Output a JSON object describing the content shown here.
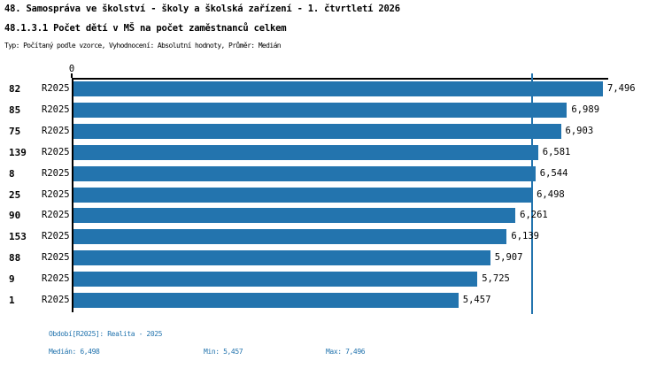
{
  "colors": {
    "accent": "#2374ae",
    "axis": "#000000",
    "title": "#000000"
  },
  "header": {
    "title_line1": "48. Samospráva ve školství - školy a školská zařízení - 1. čtvrtletí 2026",
    "title_line2": "48.1.3.1 Počet dětí v MŠ na počet zaměstnanců celkem",
    "subtitle": "Typ: Počítaný podle vzorce, Vyhodnocení: Absolutní hodnoty, Průměr: Medián"
  },
  "chart_data": {
    "type": "bar",
    "orientation": "horizontal",
    "xlim": [
      0,
      7496
    ],
    "x_tick_labels": [
      "0"
    ],
    "grid": false,
    "median_value": 6498,
    "series_name": "R2025",
    "rows": [
      {
        "id": "82",
        "period": "R2025",
        "value": 7496,
        "label": "7,496"
      },
      {
        "id": "85",
        "period": "R2025",
        "value": 6989,
        "label": "6,989"
      },
      {
        "id": "75",
        "period": "R2025",
        "value": 6903,
        "label": "6,903"
      },
      {
        "id": "139",
        "period": "R2025",
        "value": 6581,
        "label": "6,581"
      },
      {
        "id": "8",
        "period": "R2025",
        "value": 6544,
        "label": "6,544"
      },
      {
        "id": "25",
        "period": "R2025",
        "value": 6498,
        "label": "6,498"
      },
      {
        "id": "90",
        "period": "R2025",
        "value": 6261,
        "label": "6,261"
      },
      {
        "id": "153",
        "period": "R2025",
        "value": 6139,
        "label": "6,139"
      },
      {
        "id": "88",
        "period": "R2025",
        "value": 5907,
        "label": "5,907"
      },
      {
        "id": "9",
        "period": "R2025",
        "value": 5725,
        "label": "5,725"
      },
      {
        "id": "1",
        "period": "R2025",
        "value": 5457,
        "label": "5,457"
      }
    ]
  },
  "footer": {
    "period_line": "Období[R2025]: Realita - 2025",
    "median_label": "Medián: 6,498",
    "min_label": "Min: 5,457",
    "max_label": "Max: 7,496"
  }
}
